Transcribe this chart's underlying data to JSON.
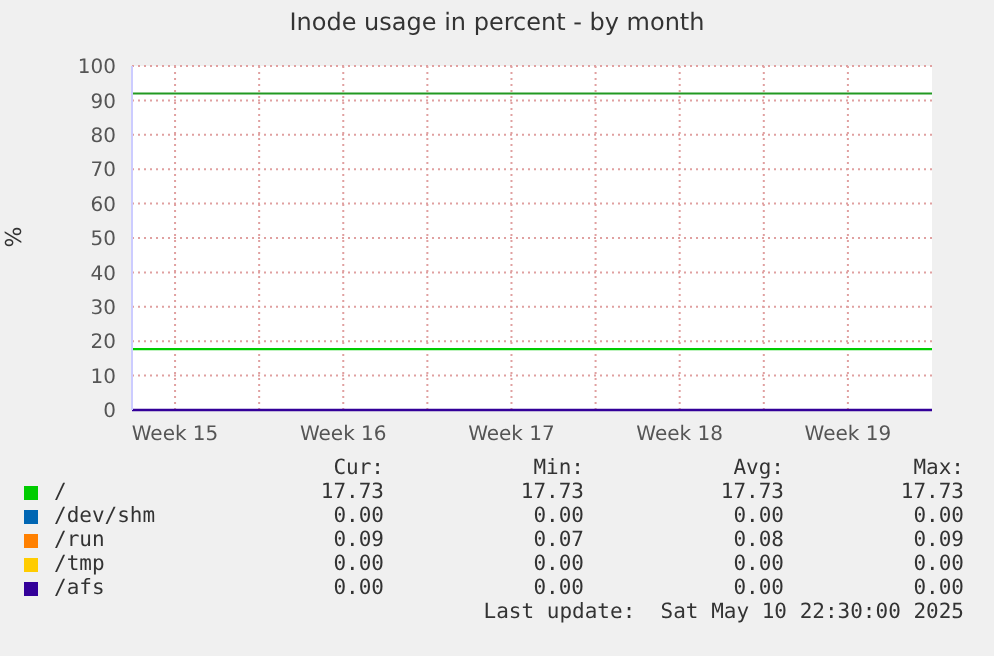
{
  "chart_data": {
    "type": "line",
    "title": "Inode usage in percent - by month",
    "ylabel": "%",
    "x": [
      "2025-04-08T17:00",
      "2025-05-12T00:00"
    ],
    "xlim": [
      "2025-04-08T17:00",
      "2025-05-12T00:00"
    ],
    "xticks": [
      {
        "value": "2025-04-10T12:00",
        "label": "Week 15"
      },
      {
        "value": "2025-04-14T00:00",
        "label": null
      },
      {
        "value": "2025-04-17T12:00",
        "label": "Week 16"
      },
      {
        "value": "2025-04-21T00:00",
        "label": null
      },
      {
        "value": "2025-04-24T12:00",
        "label": "Week 17"
      },
      {
        "value": "2025-04-28T00:00",
        "label": null
      },
      {
        "value": "2025-05-01T12:00",
        "label": "Week 18"
      },
      {
        "value": "2025-05-05T00:00",
        "label": null
      },
      {
        "value": "2025-05-08T12:00",
        "label": "Week 19"
      }
    ],
    "ylim": [
      0,
      100
    ],
    "yticks": [
      0,
      10,
      20,
      30,
      40,
      50,
      60,
      70,
      80,
      90,
      100
    ],
    "grid": true,
    "legend": "bottom",
    "marker": "none",
    "line_style": "solid",
    "series": [
      {
        "name": "/",
        "color": "#00cc00",
        "values": [
          17.7,
          17.7
        ]
      },
      {
        "name": "/dev/shm",
        "color": "#0066b3",
        "values": [
          null,
          null
        ]
      },
      {
        "name": "/run",
        "color": "#ff8000",
        "values": [
          null,
          null
        ]
      },
      {
        "name": "/tmp",
        "color": "#ffcc00",
        "values": [
          null,
          null
        ]
      },
      {
        "name": "/afs",
        "color": "#330099",
        "values": [
          0,
          0
        ]
      }
    ],
    "ref_lines": [
      {
        "axis": "y",
        "value": 92,
        "color": "#229922"
      }
    ],
    "annotations": [
      "Cur:",
      "Min:",
      "Avg:",
      "Max:",
      "17.73",
      "17.73",
      "17.73",
      "17.73",
      "0.00",
      "0.00",
      "0.00",
      "0.00",
      "0.09",
      "0.07",
      "0.08",
      "0.09",
      "0.00",
      "0.00",
      "0.00",
      "0.00",
      "0.00",
      "0.00",
      "0.00",
      "0.00",
      "Last update:  Sat May 10 22:30:00 2025"
    ]
  }
}
